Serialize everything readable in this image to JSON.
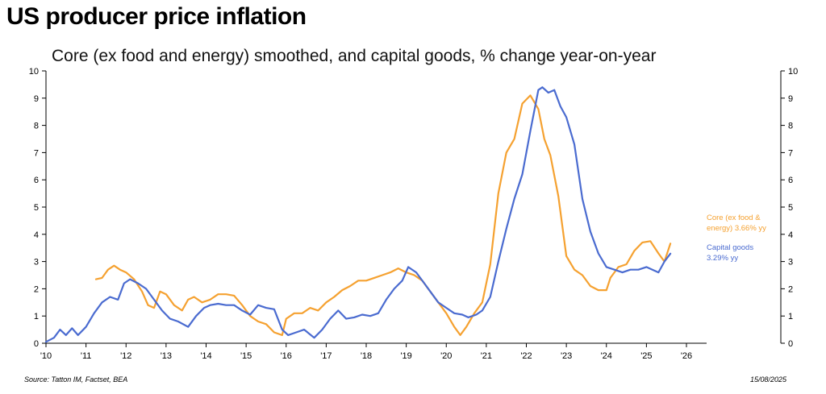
{
  "header": {
    "title": "US producer price inflation",
    "subtitle": "Core (ex food and energy) smoothed,  and capital goods, % change year-on-year"
  },
  "footer": {
    "source": "Source: Tatton IM, Factset, BEA",
    "date": "15/08/2025"
  },
  "colors": {
    "core": "#F5A130",
    "capital": "#4A6BD0",
    "axis": "#000000"
  },
  "chart_data": {
    "type": "line",
    "title": "US producer price inflation",
    "subtitle": "Core (ex food and energy) smoothed,  and capital goods, % change year-on-year",
    "xlim": [
      2010,
      2026
    ],
    "ylim": [
      0,
      10
    ],
    "x_ticks": [
      2010,
      2011,
      2012,
      2013,
      2014,
      2015,
      2016,
      2017,
      2018,
      2019,
      2020,
      2021,
      2022,
      2023,
      2024,
      2025,
      2026
    ],
    "x_tick_labels": [
      "'10",
      "'11",
      "'12",
      "'13",
      "'14",
      "'15",
      "'16",
      "'17",
      "'18",
      "'19",
      "'20",
      "'21",
      "'22",
      "'23",
      "'24",
      "'25",
      "'26"
    ],
    "y_ticks": [
      0,
      1,
      2,
      3,
      4,
      5,
      6,
      7,
      8,
      9,
      10
    ],
    "y_tick_labels": [
      "0",
      "1",
      "2",
      "3",
      "4",
      "5",
      "6",
      "7",
      "8",
      "9",
      "10"
    ],
    "grid": false,
    "legend_position": "right",
    "series": [
      {
        "key": "core",
        "name": "Core (ex food & energy)",
        "label_lines": [
          "Core (ex food &",
          "energy) 3.66% yy"
        ],
        "color": "#F5A130",
        "x": [
          2011.25,
          2011.4,
          2011.55,
          2011.7,
          2011.85,
          2012.0,
          2012.2,
          2012.4,
          2012.55,
          2012.7,
          2012.85,
          2013.0,
          2013.2,
          2013.4,
          2013.55,
          2013.7,
          2013.9,
          2014.1,
          2014.3,
          2014.5,
          2014.7,
          2014.9,
          2015.1,
          2015.3,
          2015.5,
          2015.7,
          2015.9,
          2016.0,
          2016.2,
          2016.4,
          2016.6,
          2016.8,
          2017.0,
          2017.2,
          2017.4,
          2017.6,
          2017.8,
          2018.0,
          2018.2,
          2018.4,
          2018.6,
          2018.8,
          2019.0,
          2019.2,
          2019.4,
          2019.6,
          2019.8,
          2020.0,
          2020.2,
          2020.35,
          2020.5,
          2020.7,
          2020.9,
          2021.1,
          2021.3,
          2021.5,
          2021.7,
          2021.9,
          2022.1,
          2022.3,
          2022.45,
          2022.6,
          2022.8,
          2023.0,
          2023.2,
          2023.4,
          2023.6,
          2023.8,
          2024.0,
          2024.1,
          2024.3,
          2024.5,
          2024.7,
          2024.9,
          2025.1,
          2025.3,
          2025.45,
          2025.6
        ],
        "values": [
          2.35,
          2.4,
          2.7,
          2.85,
          2.7,
          2.6,
          2.35,
          1.9,
          1.4,
          1.3,
          1.9,
          1.8,
          1.4,
          1.2,
          1.6,
          1.7,
          1.5,
          1.6,
          1.8,
          1.8,
          1.75,
          1.4,
          1.0,
          0.8,
          0.7,
          0.4,
          0.3,
          0.9,
          1.1,
          1.1,
          1.3,
          1.2,
          1.5,
          1.7,
          1.95,
          2.1,
          2.3,
          2.3,
          2.4,
          2.5,
          2.6,
          2.75,
          2.6,
          2.5,
          2.3,
          1.9,
          1.5,
          1.1,
          0.6,
          0.3,
          0.6,
          1.1,
          1.5,
          2.9,
          5.5,
          7.0,
          7.5,
          8.8,
          9.1,
          8.6,
          7.5,
          6.9,
          5.4,
          3.2,
          2.7,
          2.5,
          2.1,
          1.95,
          1.95,
          2.4,
          2.8,
          2.9,
          3.4,
          3.7,
          3.75,
          3.3,
          3.0,
          3.66
        ]
      },
      {
        "key": "capital",
        "name": "Capital goods",
        "label_lines": [
          "Capital goods",
          "3.29% yy"
        ],
        "color": "#4A6BD0",
        "x": [
          2010.0,
          2010.2,
          2010.35,
          2010.5,
          2010.65,
          2010.8,
          2011.0,
          2011.2,
          2011.4,
          2011.6,
          2011.8,
          2011.95,
          2012.1,
          2012.3,
          2012.5,
          2012.7,
          2012.9,
          2013.1,
          2013.3,
          2013.55,
          2013.75,
          2013.95,
          2014.1,
          2014.3,
          2014.5,
          2014.7,
          2014.9,
          2015.1,
          2015.3,
          2015.5,
          2015.7,
          2015.9,
          2016.05,
          2016.25,
          2016.45,
          2016.7,
          2016.9,
          2017.1,
          2017.3,
          2017.5,
          2017.7,
          2017.9,
          2018.1,
          2018.3,
          2018.5,
          2018.7,
          2018.9,
          2019.05,
          2019.25,
          2019.45,
          2019.6,
          2019.8,
          2020.0,
          2020.2,
          2020.4,
          2020.55,
          2020.75,
          2020.9,
          2021.1,
          2021.3,
          2021.5,
          2021.7,
          2021.9,
          2022.1,
          2022.3,
          2022.4,
          2022.55,
          2022.7,
          2022.85,
          2023.0,
          2023.2,
          2023.4,
          2023.6,
          2023.8,
          2024.0,
          2024.2,
          2024.4,
          2024.6,
          2024.8,
          2025.0,
          2025.15,
          2025.3,
          2025.45,
          2025.6
        ],
        "values": [
          0.05,
          0.2,
          0.5,
          0.3,
          0.55,
          0.3,
          0.6,
          1.1,
          1.5,
          1.7,
          1.6,
          2.2,
          2.35,
          2.2,
          2.0,
          1.6,
          1.2,
          0.9,
          0.8,
          0.6,
          1.0,
          1.3,
          1.4,
          1.45,
          1.4,
          1.4,
          1.2,
          1.05,
          1.4,
          1.3,
          1.25,
          0.5,
          0.3,
          0.4,
          0.5,
          0.2,
          0.5,
          0.9,
          1.2,
          0.9,
          0.95,
          1.05,
          1.0,
          1.1,
          1.6,
          2.0,
          2.3,
          2.8,
          2.6,
          2.2,
          1.9,
          1.5,
          1.3,
          1.1,
          1.05,
          0.95,
          1.05,
          1.2,
          1.7,
          3.0,
          4.2,
          5.3,
          6.2,
          7.8,
          9.3,
          9.4,
          9.2,
          9.3,
          8.7,
          8.3,
          7.3,
          5.3,
          4.1,
          3.3,
          2.8,
          2.7,
          2.6,
          2.7,
          2.7,
          2.8,
          2.7,
          2.6,
          3.0,
          3.29
        ]
      }
    ]
  }
}
